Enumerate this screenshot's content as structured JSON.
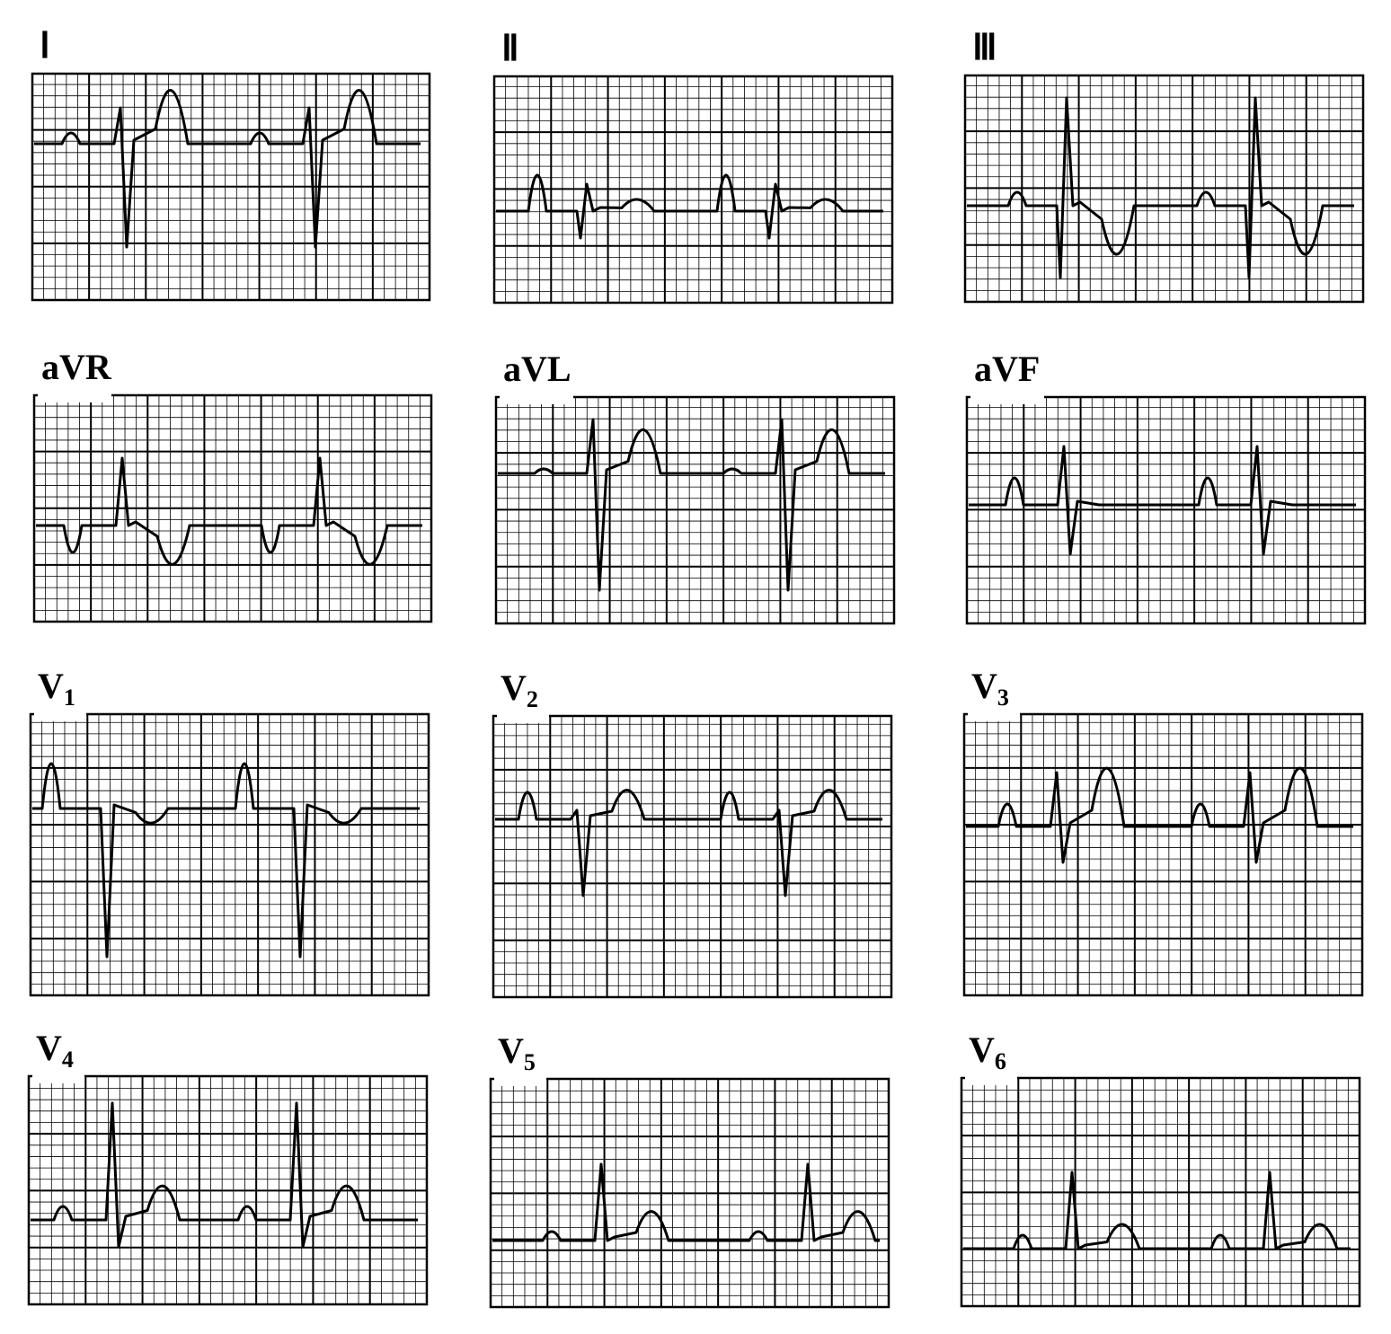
{
  "leads": [
    {
      "label": "Ⅰ"
    },
    {
      "label": "Ⅱ"
    },
    {
      "label": "Ⅲ"
    },
    {
      "label": "aVR"
    },
    {
      "label": "aVL"
    },
    {
      "label": "aVF"
    },
    {
      "label": "V",
      "subscript": "1"
    },
    {
      "label": "V",
      "subscript": "2"
    },
    {
      "label": "V",
      "subscript": "3"
    },
    {
      "label": "V",
      "subscript": "4"
    },
    {
      "label": "V",
      "subscript": "5"
    },
    {
      "label": "V",
      "subscript": "6"
    }
  ]
}
